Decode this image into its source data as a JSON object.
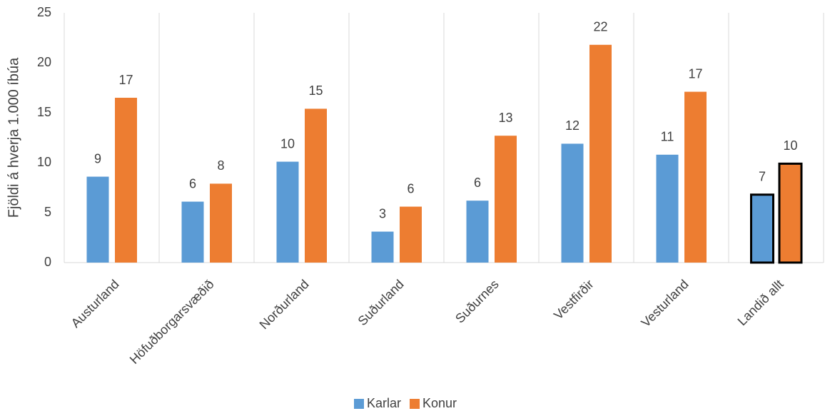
{
  "chart_data": {
    "type": "bar",
    "y_label": "Fjöldi á hverja 1.000 íbúa",
    "categories": [
      "Austurland",
      "Höfuðborgarsvæðið",
      "Norðurland",
      "Suðurland",
      "Suðurnes",
      "Vestfirðir",
      "Vesturland",
      "Landið allt"
    ],
    "series": [
      {
        "name": "Karlar",
        "color": "#5b9bd5",
        "values": [
          8.6,
          6.1,
          10.1,
          3.1,
          6.2,
          11.9,
          10.8,
          6.8
        ],
        "value_labels": [
          "9",
          "6",
          "10",
          "3",
          "6",
          "12",
          "11",
          "7"
        ]
      },
      {
        "name": "Konur",
        "color": "#ed7d31",
        "values": [
          16.5,
          7.9,
          15.4,
          5.6,
          12.7,
          21.8,
          17.1,
          9.9
        ],
        "value_labels": [
          "17",
          "8",
          "15",
          "6",
          "13",
          "22",
          "17",
          "10"
        ]
      }
    ],
    "ylim": [
      0,
      25
    ],
    "yticks": [
      0,
      5,
      10,
      15,
      20,
      25
    ],
    "highlight_index": 7,
    "highlight_stroke": "#000000",
    "legend": "bottom"
  }
}
